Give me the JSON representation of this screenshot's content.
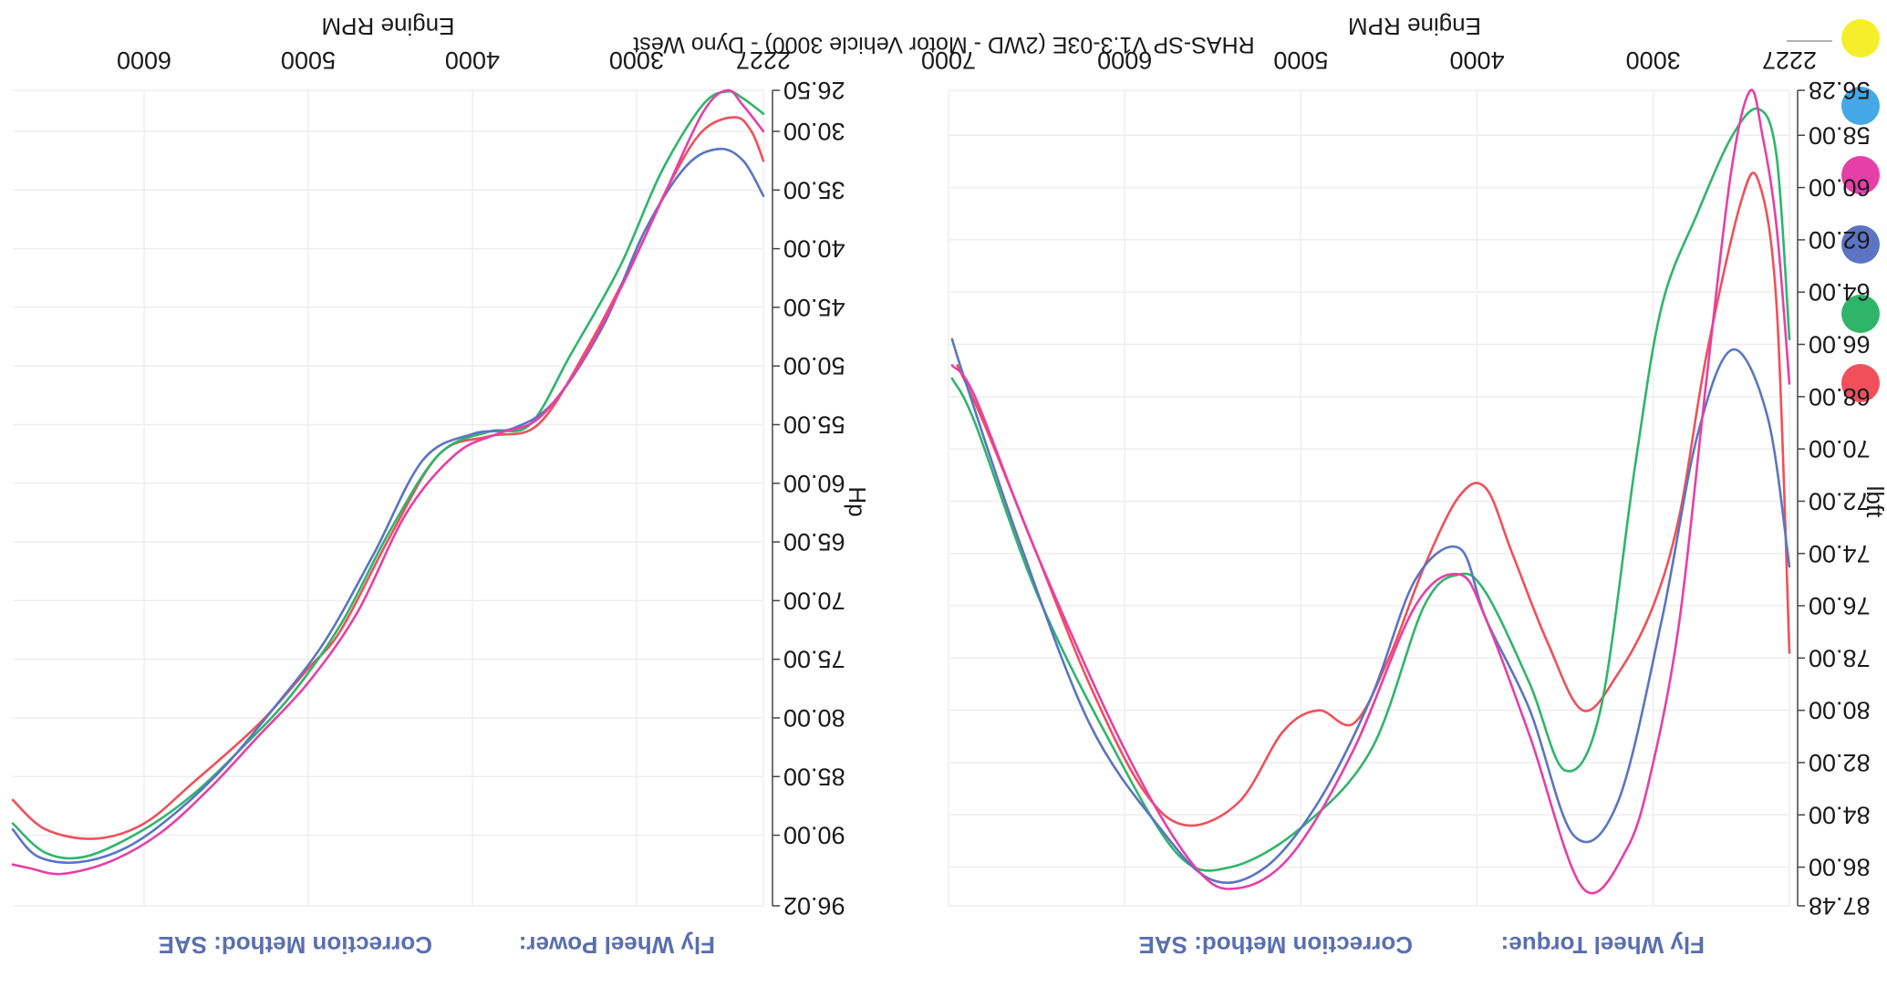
{
  "footer": {
    "title": "RHAS-SP V1.3-03E  (2WD - Motor Vehicle 3000) - Dyno West"
  },
  "legend": {
    "swatches": [
      {
        "name": "yellow-swatch",
        "color": "#f5ee2a"
      },
      {
        "name": "blue-swatch",
        "color": "#44a8e8"
      },
      {
        "name": "magenta-swatch",
        "color": "#e63fa7"
      },
      {
        "name": "indigo-swatch",
        "color": "#5b74c4"
      },
      {
        "name": "green-swatch",
        "color": "#2fb56a"
      },
      {
        "name": "red-swatch",
        "color": "#f0505a"
      }
    ]
  },
  "chart_data": [
    {
      "type": "line",
      "id": "torque",
      "header": "Fly Wheel Torque:",
      "correction": "Correction Method: SAE",
      "xlabel": "Engine RPM",
      "ylabel": "lbft",
      "xlim": [
        2227,
        7000
      ],
      "ylim": [
        56.28,
        87.48
      ],
      "x_ticks": [
        "2227",
        "3000",
        "4000",
        "5000",
        "6000",
        "7000"
      ],
      "y_ticks": [
        "56.28",
        "58.00",
        "60.00",
        "62.00",
        "64.00",
        "66.00",
        "68.00",
        "70.00",
        "72.00",
        "74.00",
        "76.00",
        "78.00",
        "80.00",
        "82.00",
        "84.00",
        "86.00",
        "87.48"
      ],
      "series": [
        {
          "color": "#f0505a",
          "points": [
            [
              2227,
              77.8
            ],
            [
              2300,
              64.5
            ],
            [
              2400,
              59.8
            ],
            [
              2500,
              60.5
            ],
            [
              2700,
              66.5
            ],
            [
              2850,
              72.5
            ],
            [
              3000,
              76.0
            ],
            [
              3200,
              78.6
            ],
            [
              3400,
              80.0
            ],
            [
              3600,
              77.4
            ],
            [
              3800,
              74.0
            ],
            [
              3950,
              71.5
            ],
            [
              4100,
              71.8
            ],
            [
              4300,
              74.5
            ],
            [
              4500,
              78.0
            ],
            [
              4700,
              80.5
            ],
            [
              4900,
              80.0
            ],
            [
              5100,
              80.8
            ],
            [
              5350,
              83.5
            ],
            [
              5650,
              84.4
            ],
            [
              5900,
              83.0
            ],
            [
              6200,
              79.0
            ],
            [
              6500,
              74.0
            ],
            [
              6800,
              69.0
            ],
            [
              6950,
              66.8
            ]
          ]
        },
        {
          "color": "#2fb56a",
          "points": [
            [
              2227,
              65.8
            ],
            [
              2300,
              58.8
            ],
            [
              2400,
              57.0
            ],
            [
              2550,
              58.0
            ],
            [
              2750,
              61.0
            ],
            [
              2950,
              64.5
            ],
            [
              3100,
              70.5
            ],
            [
              3300,
              80.0
            ],
            [
              3500,
              82.3
            ],
            [
              3700,
              79.0
            ],
            [
              3950,
              75.5
            ],
            [
              4100,
              74.8
            ],
            [
              4300,
              76.0
            ],
            [
              4600,
              81.5
            ],
            [
              5000,
              84.5
            ],
            [
              5400,
              86.0
            ],
            [
              5700,
              85.5
            ],
            [
              6100,
              81.0
            ],
            [
              6500,
              75.5
            ],
            [
              6850,
              69.0
            ],
            [
              6980,
              67.3
            ]
          ]
        },
        {
          "color": "#5b74c4",
          "points": [
            [
              2227,
              74.5
            ],
            [
              2350,
              68.8
            ],
            [
              2550,
              66.2
            ],
            [
              2750,
              69.5
            ],
            [
              2950,
              76.5
            ],
            [
              3200,
              83.5
            ],
            [
              3450,
              84.8
            ],
            [
              3700,
              80.0
            ],
            [
              3950,
              76.5
            ],
            [
              4100,
              73.8
            ],
            [
              4350,
              75.0
            ],
            [
              4600,
              79.5
            ],
            [
              4900,
              83.5
            ],
            [
              5200,
              86.0
            ],
            [
              5500,
              86.5
            ],
            [
              5800,
              84.5
            ],
            [
              6200,
              80.5
            ],
            [
              6600,
              73.5
            ],
            [
              6900,
              67.5
            ],
            [
              6980,
              65.8
            ]
          ]
        },
        {
          "color": "#e63fa7",
          "points": [
            [
              2227,
              67.5
            ],
            [
              2300,
              61.5
            ],
            [
              2380,
              58.0
            ],
            [
              2450,
              56.3
            ],
            [
              2560,
              59.5
            ],
            [
              2700,
              67.5
            ],
            [
              2850,
              76.5
            ],
            [
              3000,
              82.0
            ],
            [
              3150,
              85.3
            ],
            [
              3400,
              86.8
            ],
            [
              3700,
              81.0
            ],
            [
              3950,
              76.5
            ],
            [
              4100,
              74.8
            ],
            [
              4350,
              76.0
            ],
            [
              4700,
              81.5
            ],
            [
              5050,
              85.5
            ],
            [
              5350,
              86.8
            ],
            [
              5600,
              86.0
            ],
            [
              6000,
              81.5
            ],
            [
              6500,
              74.0
            ],
            [
              6850,
              68.0
            ],
            [
              6980,
              66.8
            ]
          ]
        }
      ]
    },
    {
      "type": "line",
      "id": "power",
      "header": "Fly Wheel Power:",
      "correction": "Correction Method: SAE",
      "xlabel": "Engine RPM",
      "ylabel": "Hp",
      "xlim": [
        2227,
        6800
      ],
      "ylim": [
        26.5,
        96.02
      ],
      "x_ticks": [
        "2227",
        "3000",
        "4000",
        "5000",
        "6000"
      ],
      "y_ticks": [
        "26.50",
        "30.00",
        "35.00",
        "40.00",
        "45.00",
        "50.00",
        "55.00",
        "60.00",
        "65.00",
        "70.00",
        "75.00",
        "80.00",
        "85.00",
        "90.00",
        "96.02"
      ],
      "series": [
        {
          "color": "#f0505a",
          "points": [
            [
              2227,
              32.5
            ],
            [
              2300,
              30.0
            ],
            [
              2400,
              28.8
            ],
            [
              2600,
              30.0
            ],
            [
              2800,
              34.5
            ],
            [
              3000,
              40.5
            ],
            [
              3300,
              48.5
            ],
            [
              3600,
              55.0
            ],
            [
              3900,
              56.0
            ],
            [
              4200,
              57.5
            ],
            [
              4500,
              64.5
            ],
            [
              4800,
              72.5
            ],
            [
              5000,
              75.8
            ],
            [
              5300,
              80.5
            ],
            [
              5700,
              85.5
            ],
            [
              6000,
              89.0
            ],
            [
              6300,
              90.3
            ],
            [
              6600,
              89.5
            ],
            [
              6800,
              87.0
            ]
          ]
        },
        {
          "color": "#2fb56a",
          "points": [
            [
              2227,
              28.5
            ],
            [
              2350,
              27.2
            ],
            [
              2450,
              26.6
            ],
            [
              2600,
              27.8
            ],
            [
              2850,
              33.5
            ],
            [
              3100,
              41.5
            ],
            [
              3400,
              49.0
            ],
            [
              3650,
              55.0
            ],
            [
              3900,
              55.6
            ],
            [
              4200,
              57.5
            ],
            [
              4500,
              64.0
            ],
            [
              4800,
              72.0
            ],
            [
              5100,
              78.0
            ],
            [
              5400,
              82.5
            ],
            [
              5700,
              86.5
            ],
            [
              6000,
              89.5
            ],
            [
              6350,
              91.8
            ],
            [
              6600,
              91.5
            ],
            [
              6800,
              89.0
            ]
          ]
        },
        {
          "color": "#5b74c4",
          "points": [
            [
              2227,
              35.5
            ],
            [
              2350,
              32.5
            ],
            [
              2500,
              31.5
            ],
            [
              2700,
              33.0
            ],
            [
              2950,
              38.5
            ],
            [
              3200,
              46.5
            ],
            [
              3500,
              53.0
            ],
            [
              3750,
              55.3
            ],
            [
              4000,
              55.8
            ],
            [
              4300,
              58.0
            ],
            [
              4600,
              66.0
            ],
            [
              4900,
              73.5
            ],
            [
              5200,
              79.0
            ],
            [
              5500,
              84.0
            ],
            [
              5800,
              88.0
            ],
            [
              6100,
              91.0
            ],
            [
              6400,
              92.3
            ],
            [
              6650,
              91.8
            ],
            [
              6800,
              89.5
            ]
          ]
        },
        {
          "color": "#e63fa7",
          "points": [
            [
              2227,
              30.0
            ],
            [
              2350,
              27.8
            ],
            [
              2450,
              26.5
            ],
            [
              2600,
              28.5
            ],
            [
              2850,
              36.0
            ],
            [
              3100,
              43.5
            ],
            [
              3350,
              50.0
            ],
            [
              3600,
              54.5
            ],
            [
              3850,
              55.8
            ],
            [
              4100,
              57.5
            ],
            [
              4400,
              62.5
            ],
            [
              4700,
              71.0
            ],
            [
              5000,
              77.0
            ],
            [
              5300,
              81.5
            ],
            [
              5600,
              86.0
            ],
            [
              5900,
              89.8
            ],
            [
              6200,
              92.2
            ],
            [
              6500,
              93.3
            ],
            [
              6700,
              92.8
            ],
            [
              6800,
              92.5
            ]
          ]
        }
      ]
    }
  ]
}
